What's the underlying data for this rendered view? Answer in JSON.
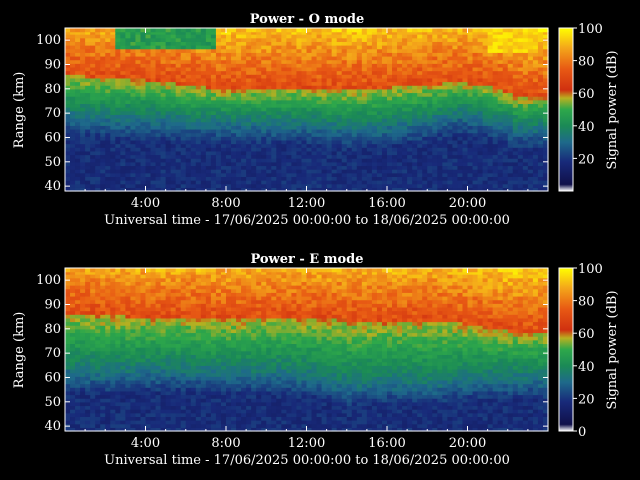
{
  "chart_data": [
    {
      "type": "heatmap",
      "title": "Power - O mode",
      "xlabel": "Universal time - 17/06/2025 00:00:00 to 18/06/2025 00:00:00",
      "ylabel": "Range (km)",
      "x_range": [
        0,
        24
      ],
      "ylim": [
        38,
        105
      ],
      "xticks": [
        "4:00",
        "8:00",
        "12:00",
        "16:00",
        "20:00"
      ],
      "yticks": [
        40,
        50,
        60,
        70,
        80,
        90,
        100
      ],
      "colorbar": {
        "label": "Signal power (dB)",
        "range": [
          0,
          100
        ],
        "ticks": [
          20,
          40,
          60,
          80,
          100
        ]
      },
      "profile": {
        "description_hours": [
          0,
          2,
          4,
          6,
          8,
          10,
          12,
          14,
          16,
          18,
          19.5,
          21,
          22.5,
          24
        ],
        "red_layer_base_km": [
          85,
          84,
          83,
          81,
          79,
          80,
          80,
          79,
          80,
          81,
          82,
          81,
          76,
          76
        ],
        "noise_floor_top_km": [
          70,
          68,
          68,
          67,
          66,
          66,
          66,
          64,
          65,
          67,
          70,
          68,
          64,
          64
        ]
      }
    },
    {
      "type": "heatmap",
      "title": "Power - E mode",
      "xlabel": "Universal time - 17/06/2025 00:00:00 to 18/06/2025 00:00:00",
      "ylabel": "Range (km)",
      "x_range": [
        0,
        24
      ],
      "ylim": [
        38,
        105
      ],
      "xticks": [
        "4:00",
        "8:00",
        "12:00",
        "16:00",
        "20:00"
      ],
      "yticks": [
        40,
        50,
        60,
        70,
        80,
        90,
        100
      ],
      "colorbar": {
        "label": "Signal power (dB)",
        "range": [
          0,
          100
        ],
        "ticks": [
          0,
          20,
          40,
          60,
          80,
          100
        ]
      },
      "profile": {
        "description_hours": [
          0,
          2,
          4,
          6,
          8,
          10,
          12,
          14,
          16,
          18,
          19.5,
          21,
          22.5,
          24
        ],
        "red_layer_base_km": [
          86,
          85,
          84,
          84,
          83,
          84,
          84,
          83,
          82,
          83,
          82,
          80,
          78,
          78
        ],
        "noise_floor_top_km": [
          63,
          62,
          63,
          63,
          62,
          62,
          61,
          57,
          58,
          57,
          59,
          60,
          60,
          60
        ]
      }
    }
  ]
}
